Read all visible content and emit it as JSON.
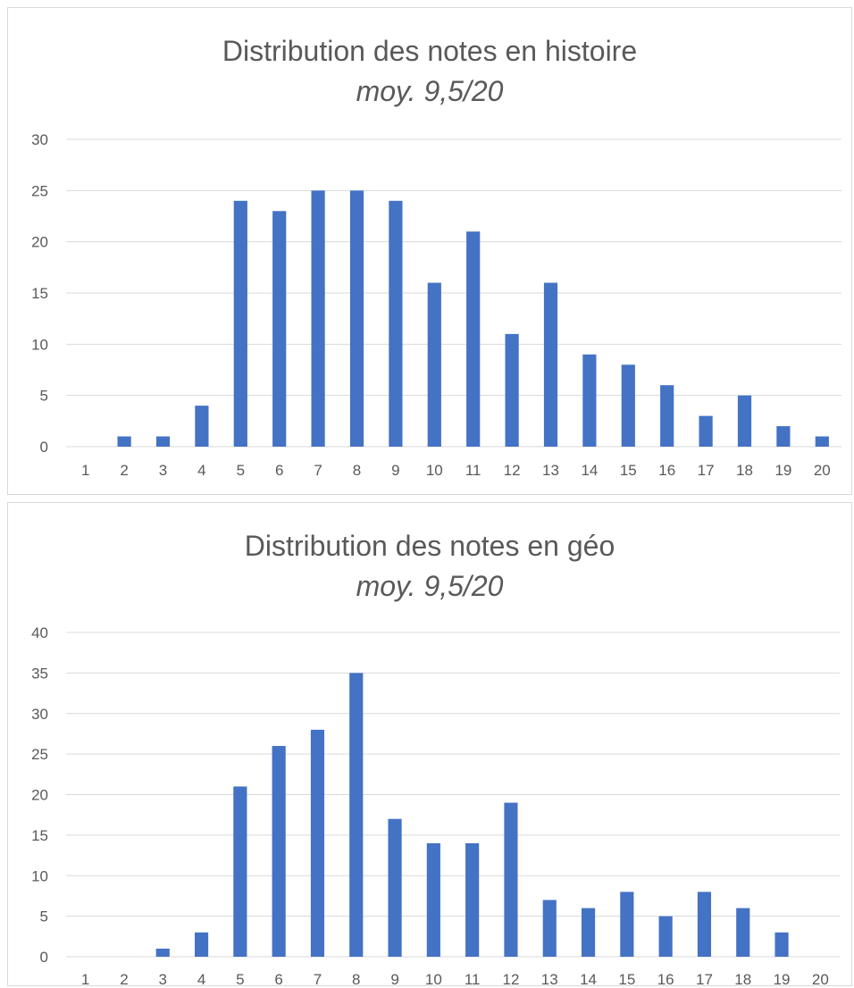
{
  "chart_data": [
    {
      "type": "bar",
      "title": "Distribution des notes en histoire",
      "subtitle": "moy. 9,5/20",
      "categories": [
        "1",
        "2",
        "3",
        "4",
        "5",
        "6",
        "7",
        "8",
        "9",
        "10",
        "11",
        "12",
        "13",
        "14",
        "15",
        "16",
        "17",
        "18",
        "19",
        "20"
      ],
      "values": [
        0,
        1,
        1,
        4,
        24,
        23,
        25,
        25,
        24,
        16,
        21,
        11,
        16,
        9,
        8,
        6,
        3,
        5,
        2,
        1
      ],
      "ylim": [
        0,
        30
      ],
      "yticks": [
        0,
        5,
        10,
        15,
        20,
        25,
        30
      ],
      "grid": true,
      "bar_color": "#4472c4"
    },
    {
      "type": "bar",
      "title": "Distribution des notes en géo",
      "subtitle": "moy. 9,5/20",
      "categories": [
        "1",
        "2",
        "3",
        "4",
        "5",
        "6",
        "7",
        "8",
        "9",
        "10",
        "11",
        "12",
        "13",
        "14",
        "15",
        "16",
        "17",
        "18",
        "19",
        "20"
      ],
      "values": [
        0,
        0,
        1,
        3,
        21,
        26,
        28,
        35,
        17,
        14,
        14,
        19,
        7,
        6,
        8,
        5,
        8,
        6,
        3,
        0
      ],
      "ylim": [
        0,
        40
      ],
      "yticks": [
        0,
        5,
        10,
        15,
        20,
        25,
        30,
        35,
        40
      ],
      "grid": true,
      "bar_color": "#4472c4"
    }
  ]
}
